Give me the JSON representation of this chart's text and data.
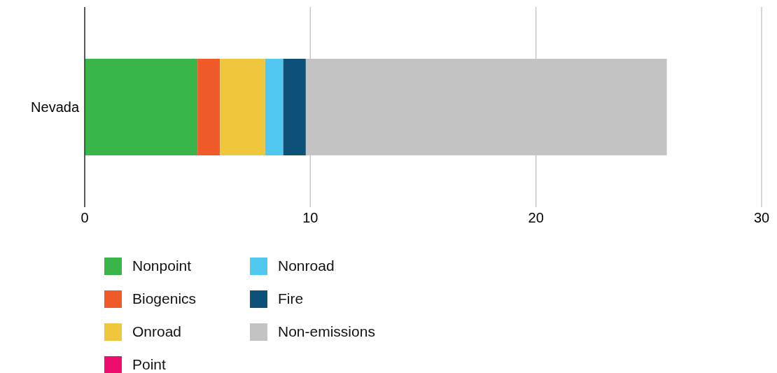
{
  "chart_data": {
    "type": "bar",
    "orientation": "horizontal",
    "stacked": true,
    "categories": [
      "Nevada"
    ],
    "series": [
      {
        "name": "Nonpoint",
        "color": "#39b54a",
        "values": [
          5.0
        ]
      },
      {
        "name": "Biogenics",
        "color": "#f15a29",
        "values": [
          1.0
        ]
      },
      {
        "name": "Onroad",
        "color": "#efc73d",
        "values": [
          2.0
        ]
      },
      {
        "name": "Point",
        "color": "#ed0d6d",
        "values": [
          0
        ]
      },
      {
        "name": "Nonroad",
        "color": "#50c8f0",
        "values": [
          0.8
        ]
      },
      {
        "name": "Fire",
        "color": "#0d5078",
        "values": [
          1.0
        ]
      },
      {
        "name": "Non-emissions",
        "color": "#c3c3c3",
        "values": [
          16.0
        ]
      }
    ],
    "xlim": [
      0,
      30
    ],
    "xticks": [
      0,
      10,
      20,
      30
    ],
    "grid": "x",
    "legend": "bottom"
  }
}
